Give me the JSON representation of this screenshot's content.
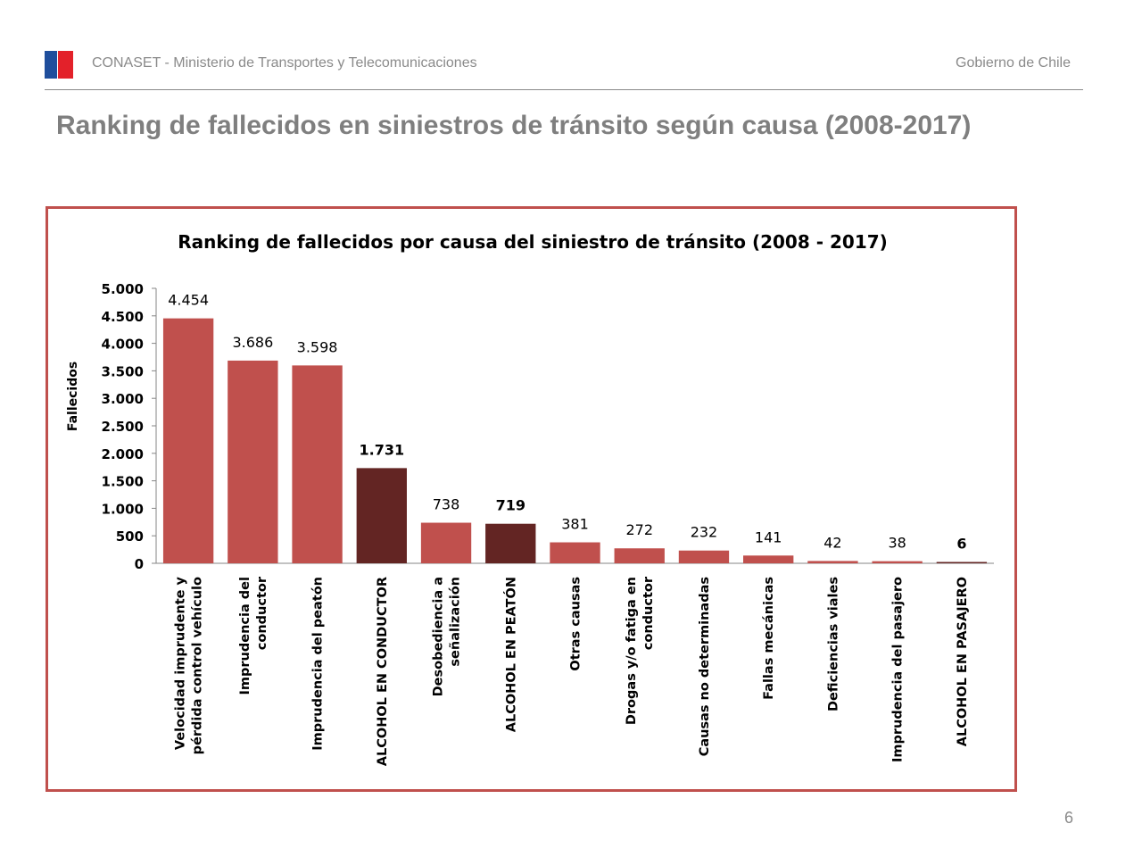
{
  "header": {
    "org_text": "CONASET - Ministerio de Transportes y Telecomunicaciones",
    "gov_text": "Gobierno de Chile",
    "logo_colors": {
      "blue": "#1f4e9c",
      "red": "#e3212a"
    }
  },
  "page": {
    "title": "Ranking de fallecidos en siniestros de tránsito según causa (2008-2017)",
    "page_number": "6"
  },
  "colors": {
    "bar_normal": "#c0504d",
    "bar_highlight": "#632523",
    "frame": "#c0504d"
  },
  "chart_data": {
    "type": "bar",
    "title": "Ranking de fallecidos por causa del siniestro de tránsito (2008 - 2017)",
    "xlabel": "",
    "ylabel": "Fallecidos",
    "ylim": [
      0,
      5000
    ],
    "yticks": [
      0,
      500,
      1000,
      1500,
      2000,
      2500,
      3000,
      3500,
      4000,
      4500,
      5000
    ],
    "ytick_labels": [
      "0",
      "500",
      "1.000",
      "1.500",
      "2.000",
      "2.500",
      "3.000",
      "3.500",
      "4.000",
      "4.500",
      "5.000"
    ],
    "categories": [
      "Velocidad imprudente y pérdida control vehículo",
      "Imprudencia del conductor",
      "Imprudencia del peatón",
      "ALCOHOL EN CONDUCTOR",
      "Desobediencia a señalización",
      "ALCOHOL EN PEATÓN",
      "Otras causas",
      "Drogas y/o fatiga en conductor",
      "Causas no determinadas",
      "Fallas mecánicas",
      "Deficiencias viales",
      "Imprudencia del pasajero",
      "ALCOHOL EN PASAJERO"
    ],
    "category_lines": [
      [
        "Velocidad imprudente y",
        "pérdida control vehículo"
      ],
      [
        "Imprudencia del",
        "conductor"
      ],
      [
        "Imprudencia del peatón"
      ],
      [
        "ALCOHOL EN CONDUCTOR"
      ],
      [
        "Desobediencia a",
        "señalización"
      ],
      [
        "ALCOHOL EN PEATÓN"
      ],
      [
        "Otras causas"
      ],
      [
        "Drogas y/o fatiga en",
        "conductor"
      ],
      [
        "Causas no determinadas"
      ],
      [
        "Fallas mecánicas"
      ],
      [
        "Deficiencias viales"
      ],
      [
        "Imprudencia del pasajero"
      ],
      [
        "ALCOHOL EN PASAJERO"
      ]
    ],
    "values": [
      4454,
      3686,
      3598,
      1731,
      738,
      719,
      381,
      272,
      232,
      141,
      42,
      38,
      6
    ],
    "value_labels": [
      "4.454",
      "3.686",
      "3.598",
      "1.731",
      "738",
      "719",
      "381",
      "272",
      "232",
      "141",
      "42",
      "38",
      "6"
    ],
    "highlighted": [
      false,
      false,
      false,
      true,
      false,
      true,
      false,
      false,
      false,
      false,
      false,
      false,
      true
    ],
    "grid": false,
    "legend": "none"
  }
}
